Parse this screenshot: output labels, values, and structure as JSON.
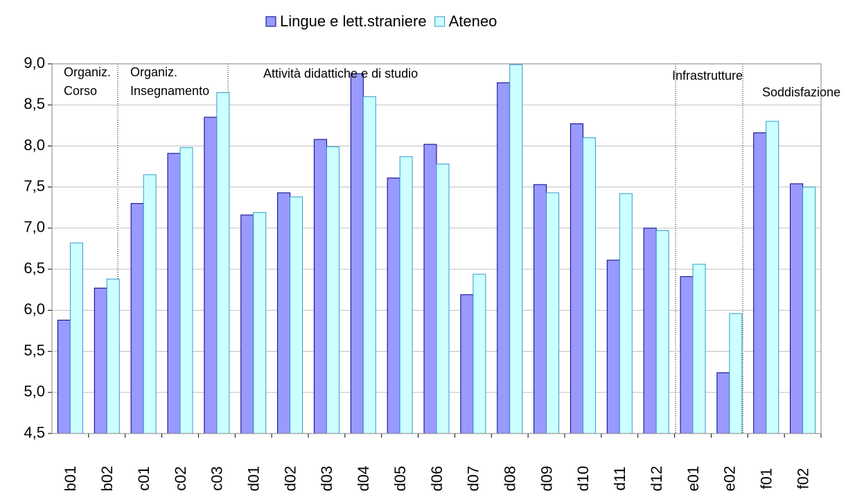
{
  "chart_data": {
    "type": "bar",
    "categories": [
      "b01",
      "b02",
      "c01",
      "c02",
      "c03",
      "d01",
      "d02",
      "d03",
      "d04",
      "d05",
      "d06",
      "d07",
      "d08",
      "d09",
      "d10",
      "d11",
      "d12",
      "e01",
      "e02",
      "f01",
      "f02"
    ],
    "series": [
      {
        "name": "Lingue e lett.straniere",
        "color": "#9999ff",
        "values": [
          5.88,
          6.27,
          7.3,
          7.91,
          8.35,
          7.16,
          7.43,
          8.08,
          8.88,
          7.61,
          8.02,
          6.19,
          8.77,
          7.53,
          8.27,
          6.61,
          7.0,
          6.41,
          5.24,
          8.16,
          7.54
        ]
      },
      {
        "name": "Ateneo",
        "color": "#ccffff",
        "values": [
          6.82,
          6.38,
          7.65,
          7.98,
          8.65,
          7.19,
          7.38,
          7.99,
          8.6,
          7.87,
          7.78,
          6.44,
          8.99,
          7.43,
          8.1,
          7.42,
          6.97,
          6.56,
          5.96,
          8.3,
          7.5
        ]
      }
    ],
    "ylim": [
      4.5,
      9.0
    ],
    "yticks": [
      {
        "value": 4.5,
        "label": "4,5"
      },
      {
        "value": 5.0,
        "label": "5,0"
      },
      {
        "value": 5.5,
        "label": "5,5"
      },
      {
        "value": 6.0,
        "label": "6,0"
      },
      {
        "value": 6.5,
        "label": "6,5"
      },
      {
        "value": 7.0,
        "label": "7,0"
      },
      {
        "value": 7.5,
        "label": "7,5"
      },
      {
        "value": 8.0,
        "label": "8,0"
      },
      {
        "value": 8.5,
        "label": "8,5"
      },
      {
        "value": 9.0,
        "label": "9,0"
      }
    ],
    "grid": true,
    "legend": "top",
    "annotations": [
      [
        "Organiz.",
        "Corso"
      ],
      [
        "Organiz.",
        "Insegnamento"
      ],
      [
        "Attività didattiche e di studio"
      ],
      [
        "Infrastrutture"
      ],
      [
        "Soddisfazione"
      ]
    ]
  }
}
